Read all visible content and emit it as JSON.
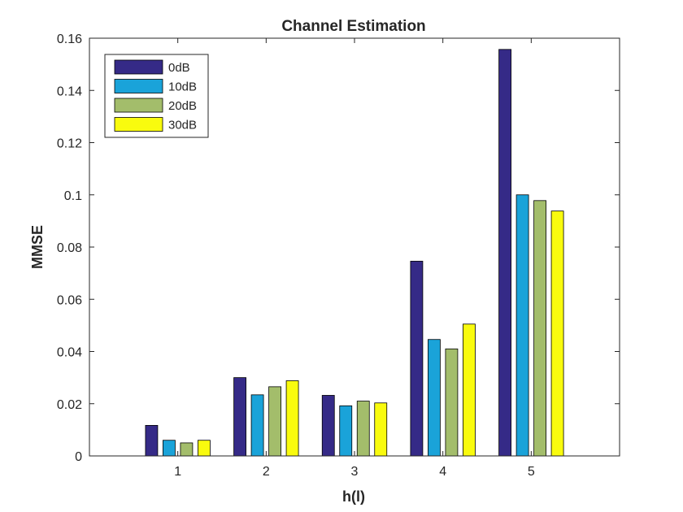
{
  "chart_data": {
    "type": "bar",
    "title": "Channel Estimation",
    "xlabel": "h(l)",
    "ylabel": "MMSE",
    "categories": [
      "1",
      "2",
      "3",
      "4",
      "5"
    ],
    "xlim": [
      0,
      6
    ],
    "ylim": [
      0,
      0.16
    ],
    "yticks": [
      0,
      0.02,
      0.04,
      0.06,
      0.08,
      0.1,
      0.12,
      0.14,
      0.16
    ],
    "ytick_labels": [
      "0",
      "0.02",
      "0.04",
      "0.06",
      "0.08",
      "0.1",
      "0.12",
      "0.14",
      "0.16"
    ],
    "grid": false,
    "legend_position": "top-left",
    "series": [
      {
        "name": "0dB",
        "color": "#352A87",
        "values": [
          0.0117,
          0.03,
          0.0232,
          0.0746,
          0.1557
        ]
      },
      {
        "name": "10dB",
        "color": "#1AA3D9",
        "values": [
          0.006,
          0.0234,
          0.0192,
          0.0446,
          0.1
        ]
      },
      {
        "name": "20dB",
        "color": "#A3BD6B",
        "values": [
          0.005,
          0.0265,
          0.021,
          0.041,
          0.0978
        ]
      },
      {
        "name": "30dB",
        "color": "#F9FB0E",
        "values": [
          0.006,
          0.0288,
          0.0203,
          0.0505,
          0.0938
        ]
      }
    ]
  }
}
